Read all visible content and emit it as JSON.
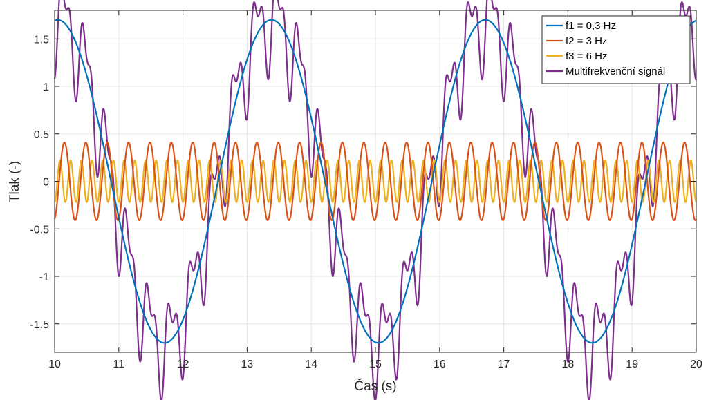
{
  "chart_data": {
    "type": "line",
    "title": "",
    "xlabel": "Čas (s)",
    "ylabel": "Tlak (-)",
    "xlim": [
      10,
      20
    ],
    "ylim": [
      -1.8,
      1.8
    ],
    "grid": true,
    "legend_position": "top-right",
    "x_ticks": [
      10,
      11,
      12,
      13,
      14,
      15,
      16,
      17,
      18,
      19,
      20
    ],
    "x_tick_labels": [
      "10",
      "11",
      "12",
      "13",
      "14",
      "15",
      "16",
      "17",
      "18",
      "19",
      "20"
    ],
    "y_ticks": [
      1.5,
      1,
      0.5,
      0,
      -0.5,
      -1,
      -1.5
    ],
    "y_tick_labels": [
      "1.5",
      "1",
      "0.5",
      "0",
      "-0.5",
      "-1",
      "-1.5"
    ],
    "series": [
      {
        "name": "f1 = 0,3 Hz",
        "label": "f1 = 0,3 Hz",
        "frequency_hz": 0.3,
        "amplitude": 1.7,
        "phase_deg": 85,
        "color": "#0072BD"
      },
      {
        "name": "f2 = 3 Hz",
        "label": "f2 = 3 Hz",
        "frequency_hz": 3,
        "amplitude": 0.41,
        "phase_deg": -75,
        "color": "#D95319"
      },
      {
        "name": "f3 = 6 Hz",
        "label": "f3 = 6 Hz",
        "frequency_hz": 6,
        "amplitude": 0.22,
        "phase_deg": -90,
        "color": "#EDB120"
      },
      {
        "name": "Multifrekvenční signál",
        "label": "Multifrekvenční signál",
        "frequency_hz": null,
        "components": [
          "f1 = 0,3 Hz",
          "f2 = 3 Hz",
          "f3 = 6 Hz"
        ],
        "color": "#7E2F8E"
      }
    ],
    "sample_points": {
      "x_start": 10,
      "x_end": 20,
      "count": 2000
    }
  }
}
